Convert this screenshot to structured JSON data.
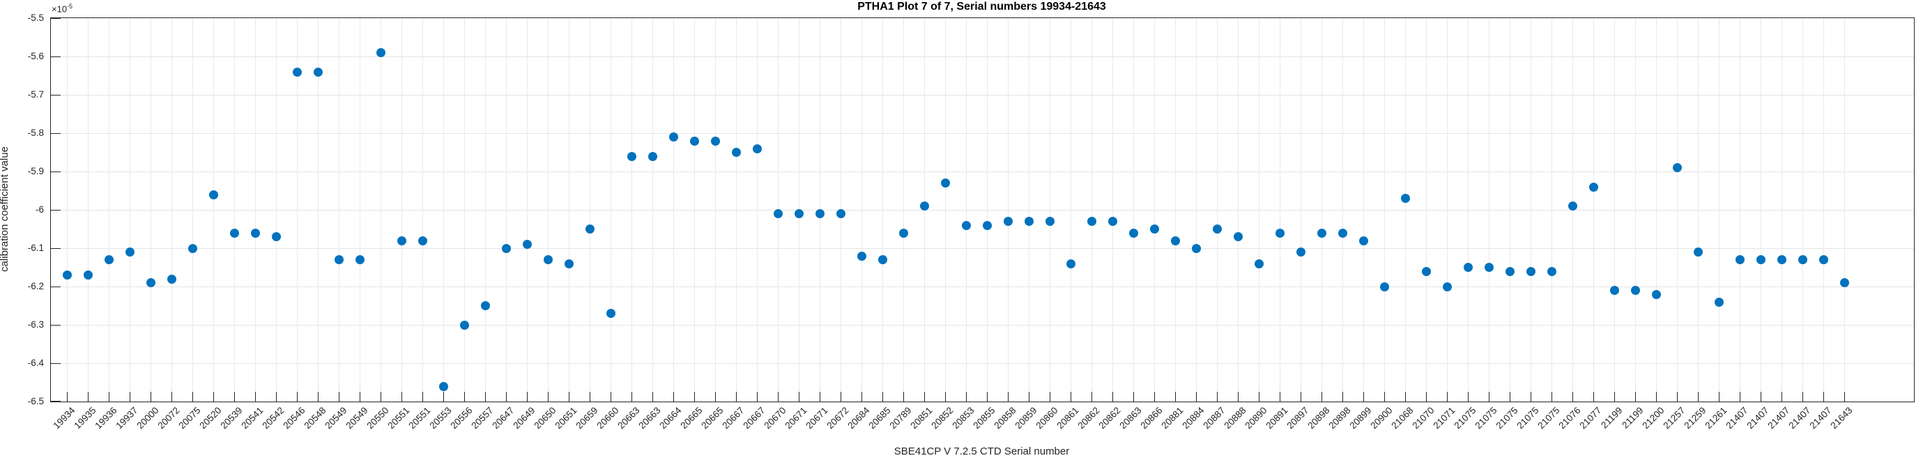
{
  "title": "PTHA1 Plot 7 of 7, Serial numbers 19934-21643",
  "axes": {
    "x_title": "SBE41CP V 7.2.5 CTD Serial number",
    "y_title": "calibration coefficient value",
    "y_exponent_base": "×10",
    "y_exponent_power": "-5"
  },
  "colors": {
    "marker": "#0072BD",
    "axis": "#262626",
    "grid_h": "#e4e4e4",
    "grid_v": "#e9e9e9",
    "title": "#000000"
  },
  "chart_data": {
    "type": "scatter",
    "title": "PTHA1 Plot 7 of 7, Serial numbers 19934-21643",
    "xlabel": "SBE41CP V 7.2.5 CTD Serial number",
    "ylabel": "calibration coefficient value",
    "value_multiplier": 1e-05,
    "ylim": [
      -6.5,
      -5.5
    ],
    "yticks": [
      -6.5,
      -6.4,
      -6.3,
      -6.2,
      -6.1,
      -6.0,
      -5.9,
      -5.8,
      -5.7,
      -5.6,
      -5.5
    ],
    "grid": true,
    "legend": false,
    "categories": [
      "19934",
      "19935",
      "19936",
      "19937",
      "20000",
      "20072",
      "20075",
      "20520",
      "20539",
      "20541",
      "20542",
      "20546",
      "20548",
      "20549",
      "20549",
      "20550",
      "20551",
      "20551",
      "20553",
      "20556",
      "20557",
      "20647",
      "20649",
      "20650",
      "20651",
      "20659",
      "20660",
      "20663",
      "20663",
      "20664",
      "20665",
      "20665",
      "20667",
      "20667",
      "20670",
      "20671",
      "20671",
      "20672",
      "20684",
      "20685",
      "20789",
      "20851",
      "20852",
      "20853",
      "20855",
      "20858",
      "20859",
      "20860",
      "20861",
      "20862",
      "20862",
      "20863",
      "20866",
      "20881",
      "20884",
      "20887",
      "20888",
      "20890",
      "20891",
      "20897",
      "20898",
      "20898",
      "20899",
      "20900",
      "21068",
      "21070",
      "21071",
      "21075",
      "21075",
      "21075",
      "21075",
      "21075",
      "21076",
      "21077",
      "21199",
      "21199",
      "21200",
      "21257",
      "21259",
      "21261",
      "21407",
      "21407",
      "21407",
      "21407",
      "21407",
      "21643"
    ],
    "values": [
      -6.17,
      -6.17,
      -6.13,
      -6.11,
      -6.19,
      -6.18,
      -6.1,
      -5.96,
      -6.06,
      -6.06,
      -6.07,
      -5.64,
      -5.64,
      -6.13,
      -6.13,
      -5.59,
      -6.08,
      -6.08,
      -6.46,
      -6.3,
      -6.25,
      -6.1,
      -6.09,
      -6.13,
      -6.14,
      -6.05,
      -6.27,
      -5.86,
      -5.86,
      -5.81,
      -5.82,
      -5.82,
      -5.85,
      -5.84,
      -6.01,
      -6.01,
      -6.01,
      -6.01,
      -6.12,
      -6.13,
      -6.06,
      -5.99,
      -5.93,
      -6.04,
      -6.04,
      -6.03,
      -6.03,
      -6.03,
      -6.14,
      -6.03,
      -6.03,
      -6.06,
      -6.05,
      -6.08,
      -6.1,
      -6.05,
      -6.07,
      -6.14,
      -6.06,
      -6.11,
      -6.06,
      -6.06,
      -6.08,
      -6.2,
      -5.97,
      -6.16,
      -6.2,
      -6.15,
      -6.15,
      -6.16,
      -6.16,
      -6.16,
      -5.99,
      -5.94,
      -6.21,
      -6.21,
      -6.22,
      -5.89,
      -6.11,
      -6.24,
      -6.13,
      -6.13,
      -6.13,
      -6.13,
      -6.13,
      -6.19
    ]
  }
}
